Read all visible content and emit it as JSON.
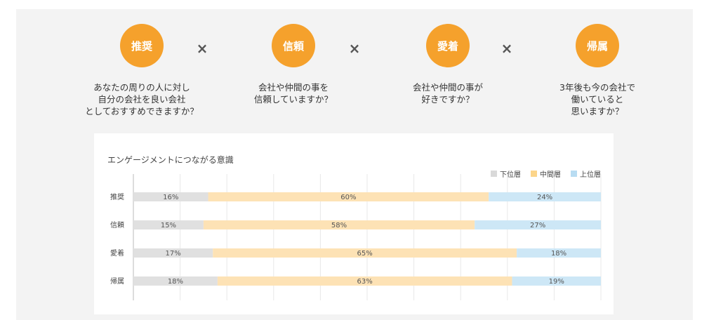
{
  "factors": [
    {
      "label": "推奨",
      "question": "あなたの周りの人に対し\n自分の会社を良い会社\nとしておすすめできますか？"
    },
    {
      "label": "信頼",
      "question": "会社や仲間の事を\n信頼していますか？"
    },
    {
      "label": "愛着",
      "question": "会社や仲間の事が\n好きですか？"
    },
    {
      "label": "帰属",
      "question": "3年後も今の会社で\n働いていると\n思いますか？"
    }
  ],
  "operator": "×",
  "colors": {
    "accent": "#f5a12c",
    "lower": "#e0e0e0",
    "middle": "#fde2b5",
    "upper": "#cde7f6"
  },
  "chart_data": {
    "type": "bar",
    "orientation": "horizontal",
    "stacked": true,
    "normalized": true,
    "title": "エンゲージメントにつながる意識",
    "categories": [
      "推奨",
      "信頼",
      "愛着",
      "帰属"
    ],
    "series": [
      {
        "name": "下位層",
        "values": [
          16,
          15,
          17,
          18
        ],
        "color": "#e0e0e0"
      },
      {
        "name": "中間層",
        "values": [
          60,
          58,
          65,
          63
        ],
        "color": "#fde2b5"
      },
      {
        "name": "上位層",
        "values": [
          24,
          27,
          18,
          19
        ],
        "color": "#cde7f6"
      }
    ],
    "value_suffix": "%",
    "xlim": [
      0,
      100
    ],
    "grid": true,
    "legend_position": "top-right"
  }
}
